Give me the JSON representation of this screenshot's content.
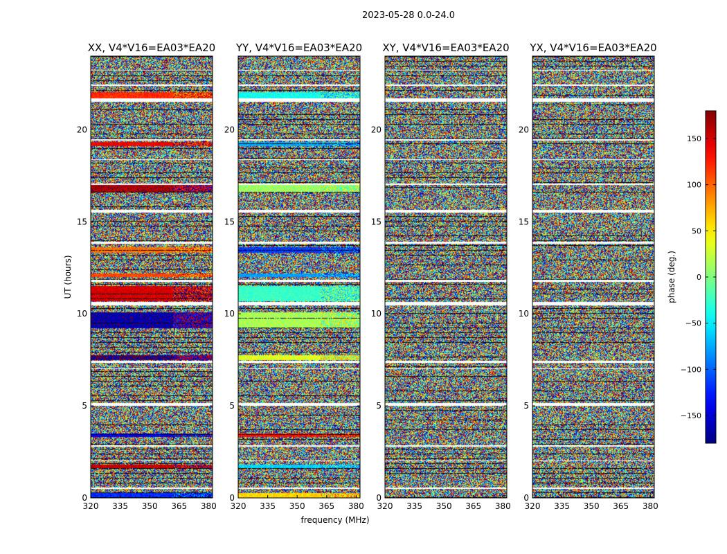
{
  "chart_data": {
    "type": "heatmap",
    "suptitle": "2023-05-28 0.0-24.0",
    "panels": [
      {
        "title": "XX, V4*V16=EA03*EA20",
        "pol": "XX"
      },
      {
        "title": "YY, V4*V16=EA03*EA20",
        "pol": "YY"
      },
      {
        "title": "XY, V4*V16=EA03*EA20",
        "pol": "XY"
      },
      {
        "title": "YX, V4*V16=EA03*EA20",
        "pol": "YX"
      }
    ],
    "xlabel": "frequency (MHz)",
    "ylabel": "UT (hours)",
    "xlim": [
      320,
      382
    ],
    "ylim": [
      0,
      24
    ],
    "x_tick_labels": [
      "320",
      "335",
      "350",
      "365",
      "380"
    ],
    "x_tick_values": [
      320,
      335,
      350,
      365,
      380
    ],
    "y_tick_labels": [
      "0",
      "5",
      "10",
      "15",
      "20"
    ],
    "y_tick_values": [
      0,
      5,
      10,
      15,
      20
    ],
    "colorbar": {
      "label": "phase (deg.)",
      "range": [
        -180,
        180
      ],
      "colormap": "jet",
      "tick_labels": [
        "−150",
        "−100",
        "−50",
        "0",
        "50",
        "100",
        "150"
      ],
      "tick_values": [
        -150,
        -100,
        -50,
        0,
        50,
        100,
        150
      ]
    },
    "flagged_ut_hours": [
      [
        0.5,
        0.55
      ],
      [
        2.0,
        2.05
      ],
      [
        2.8,
        2.85
      ],
      [
        5.0,
        5.15
      ],
      [
        6.98,
        7.05
      ],
      [
        7.35,
        7.45
      ],
      [
        10.45,
        10.65
      ],
      [
        11.75,
        11.85
      ],
      [
        13.8,
        13.9
      ],
      [
        15.5,
        15.65
      ],
      [
        17.0,
        17.08
      ],
      [
        18.35,
        18.4
      ],
      [
        19.4,
        19.5
      ],
      [
        21.5,
        21.7
      ],
      [
        22.4,
        22.45
      ],
      [
        23.2,
        23.25
      ]
    ],
    "coherent_bands": [
      {
        "ut": [
          21.7,
          22.05
        ],
        "XX": 120,
        "YY": -40
      },
      {
        "ut": [
          19.1,
          19.35
        ],
        "XX": 140,
        "YY": -75
      },
      {
        "ut": [
          16.6,
          17.0
        ],
        "XX": 165,
        "YY": 10
      },
      {
        "ut": [
          13.3,
          13.6
        ],
        "XX": 95,
        "YY": -115
      },
      {
        "ut": [
          12.0,
          12.2
        ],
        "XX": 110,
        "YY": -80
      },
      {
        "ut": [
          10.7,
          11.5
        ],
        "XX": 150,
        "YY": -25
      },
      {
        "ut": [
          9.2,
          10.1
        ],
        "XX": -165,
        "YY": 15
      },
      {
        "ut": [
          7.5,
          7.75
        ],
        "XX": -175,
        "YY": 35
      },
      {
        "ut": [
          3.3,
          3.5
        ],
        "XX": -140,
        "YY": 130
      },
      {
        "ut": [
          1.6,
          1.8
        ],
        "XX": 155,
        "YY": -60
      },
      {
        "ut": [
          0.0,
          0.25
        ],
        "XX": -120,
        "YY": 60
      }
    ]
  }
}
